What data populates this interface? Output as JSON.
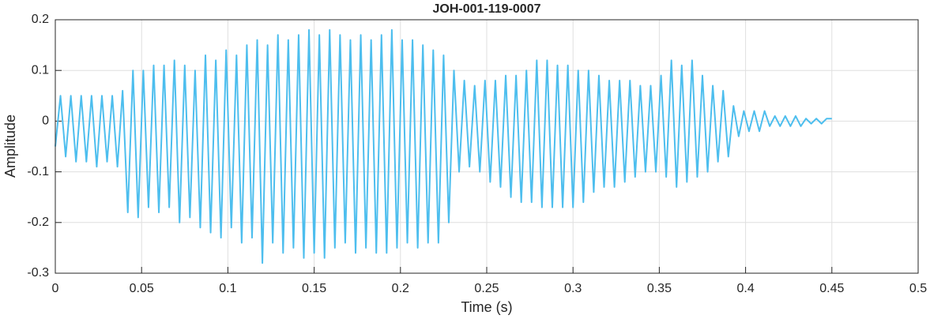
{
  "chart_data": {
    "type": "line",
    "title": "JOH-001-119-0007",
    "xlabel": "Time (s)",
    "ylabel": "Amplitude",
    "xlim": [
      0,
      0.5
    ],
    "xticks": [
      0,
      0.05,
      0.1,
      0.15,
      0.2,
      0.25,
      0.3,
      0.35,
      0.4,
      0.45,
      0.5
    ],
    "ylim": [
      -0.3,
      0.2
    ],
    "yticks": [
      -0.3,
      -0.2,
      -0.1,
      0,
      0.1,
      0.2
    ],
    "grid": true,
    "series": [
      {
        "color": "#4dbeee",
        "x": [
          0,
          0.003,
          0.006,
          0.009,
          0.012,
          0.015,
          0.018,
          0.021,
          0.024,
          0.027,
          0.03,
          0.033,
          0.036,
          0.039,
          0.042,
          0.045,
          0.048,
          0.051,
          0.054,
          0.057,
          0.06,
          0.063,
          0.066,
          0.069,
          0.072,
          0.075,
          0.078,
          0.081,
          0.084,
          0.087,
          0.09,
          0.093,
          0.096,
          0.099,
          0.102,
          0.105,
          0.108,
          0.111,
          0.114,
          0.117,
          0.12,
          0.123,
          0.126,
          0.129,
          0.132,
          0.135,
          0.138,
          0.141,
          0.144,
          0.147,
          0.15,
          0.153,
          0.156,
          0.159,
          0.162,
          0.165,
          0.168,
          0.171,
          0.174,
          0.177,
          0.18,
          0.183,
          0.186,
          0.189,
          0.192,
          0.195,
          0.198,
          0.201,
          0.204,
          0.207,
          0.21,
          0.213,
          0.216,
          0.219,
          0.222,
          0.225,
          0.228,
          0.231,
          0.234,
          0.237,
          0.24,
          0.243,
          0.246,
          0.249,
          0.252,
          0.255,
          0.258,
          0.261,
          0.264,
          0.267,
          0.27,
          0.273,
          0.276,
          0.279,
          0.282,
          0.285,
          0.288,
          0.291,
          0.294,
          0.297,
          0.3,
          0.303,
          0.306,
          0.309,
          0.312,
          0.315,
          0.318,
          0.321,
          0.324,
          0.327,
          0.33,
          0.333,
          0.336,
          0.339,
          0.342,
          0.345,
          0.348,
          0.351,
          0.354,
          0.357,
          0.36,
          0.363,
          0.366,
          0.369,
          0.372,
          0.375,
          0.378,
          0.381,
          0.384,
          0.387,
          0.39,
          0.393,
          0.396,
          0.399,
          0.402,
          0.405,
          0.408,
          0.411,
          0.414,
          0.417,
          0.42,
          0.423,
          0.426,
          0.429,
          0.432,
          0.435,
          0.438,
          0.441,
          0.444,
          0.447,
          0.45
        ],
        "values": [
          -0.05,
          0.05,
          -0.07,
          0.05,
          -0.08,
          0.05,
          -0.08,
          0.05,
          -0.09,
          0.05,
          -0.08,
          0.05,
          -0.09,
          0.06,
          -0.18,
          0.1,
          -0.19,
          0.1,
          -0.17,
          0.11,
          -0.18,
          0.11,
          -0.17,
          0.12,
          -0.2,
          0.11,
          -0.19,
          0.1,
          -0.21,
          0.13,
          -0.22,
          0.12,
          -0.23,
          0.14,
          -0.21,
          0.13,
          -0.24,
          0.15,
          -0.23,
          0.16,
          -0.28,
          0.15,
          -0.24,
          0.17,
          -0.26,
          0.16,
          -0.25,
          0.17,
          -0.27,
          0.18,
          -0.26,
          0.17,
          -0.27,
          0.18,
          -0.25,
          0.17,
          -0.24,
          0.16,
          -0.26,
          0.17,
          -0.25,
          0.16,
          -0.26,
          0.17,
          -0.26,
          0.18,
          -0.25,
          0.16,
          -0.24,
          0.16,
          -0.25,
          0.15,
          -0.24,
          0.14,
          -0.24,
          0.13,
          -0.2,
          0.1,
          -0.1,
          0.08,
          -0.09,
          0.07,
          -0.1,
          0.08,
          -0.12,
          0.08,
          -0.13,
          0.09,
          -0.15,
          0.09,
          -0.16,
          0.1,
          -0.16,
          0.12,
          -0.17,
          0.12,
          -0.17,
          0.11,
          -0.17,
          0.11,
          -0.17,
          0.1,
          -0.16,
          0.1,
          -0.14,
          0.09,
          -0.13,
          0.08,
          -0.13,
          0.08,
          -0.12,
          0.08,
          -0.11,
          0.07,
          -0.1,
          0.07,
          -0.1,
          0.09,
          -0.11,
          0.12,
          -0.13,
          0.11,
          -0.12,
          0.12,
          -0.11,
          0.09,
          -0.1,
          0.07,
          -0.08,
          0.06,
          -0.07,
          0.03,
          -0.03,
          0.02,
          -0.02,
          0.02,
          -0.02,
          0.02,
          -0.01,
          0.01,
          -0.01,
          0.01,
          -0.01,
          0.01,
          -0.01,
          0.005,
          -0.005,
          0.005,
          -0.005,
          0.005,
          0.005
        ]
      }
    ]
  }
}
